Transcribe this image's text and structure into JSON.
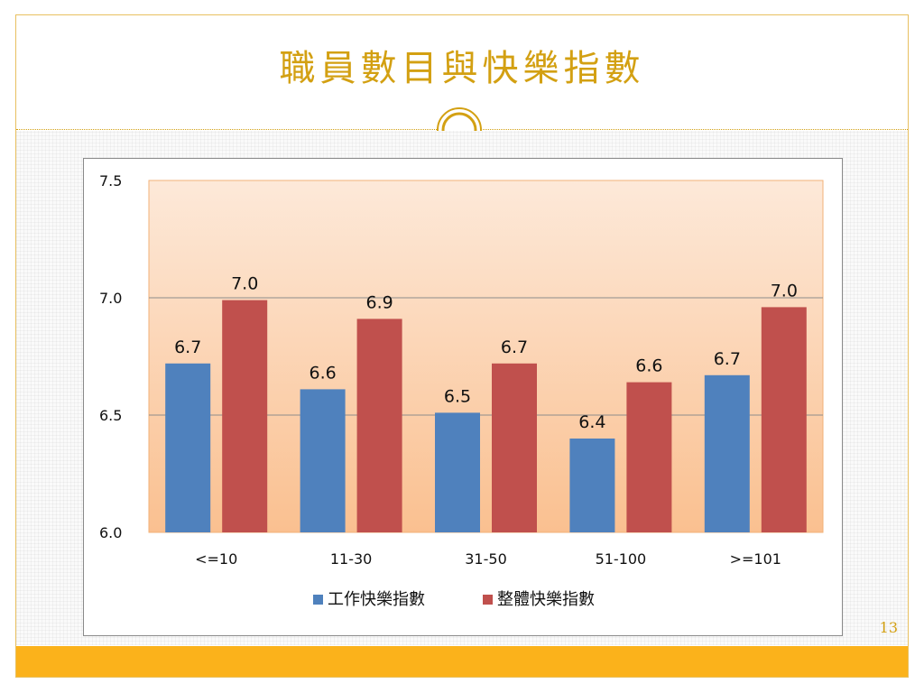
{
  "slide": {
    "title": "職員數目與快樂指數",
    "page_number": "13"
  },
  "colors": {
    "accent": "#d3a012",
    "band": "#fbb21b",
    "series_1": "#4f81bd",
    "series_2": "#c0504d",
    "plot_top": "#fde9d9",
    "plot_bottom": "#fac090"
  },
  "chart_data": {
    "type": "bar",
    "categories": [
      "<=10",
      "11-30",
      "31-50",
      "51-100",
      ">=101"
    ],
    "series": [
      {
        "name": "工作快樂指數",
        "values": [
          6.72,
          6.61,
          6.51,
          6.4,
          6.67
        ],
        "labels": [
          "6.7",
          "6.6",
          "6.5",
          "6.4",
          "6.7"
        ]
      },
      {
        "name": "整體快樂指數",
        "values": [
          6.99,
          6.91,
          6.72,
          6.64,
          6.96
        ],
        "labels": [
          "7.0",
          "6.9",
          "6.7",
          "6.6",
          "7.0"
        ]
      }
    ],
    "ylim": [
      6.0,
      7.5
    ],
    "yticks": [
      "6.0",
      "6.5",
      "7.0",
      "7.5"
    ],
    "ytick_values": [
      6.0,
      6.5,
      7.0,
      7.5
    ],
    "gridlines": [
      6.5,
      7.0
    ],
    "legend_position": "bottom"
  }
}
